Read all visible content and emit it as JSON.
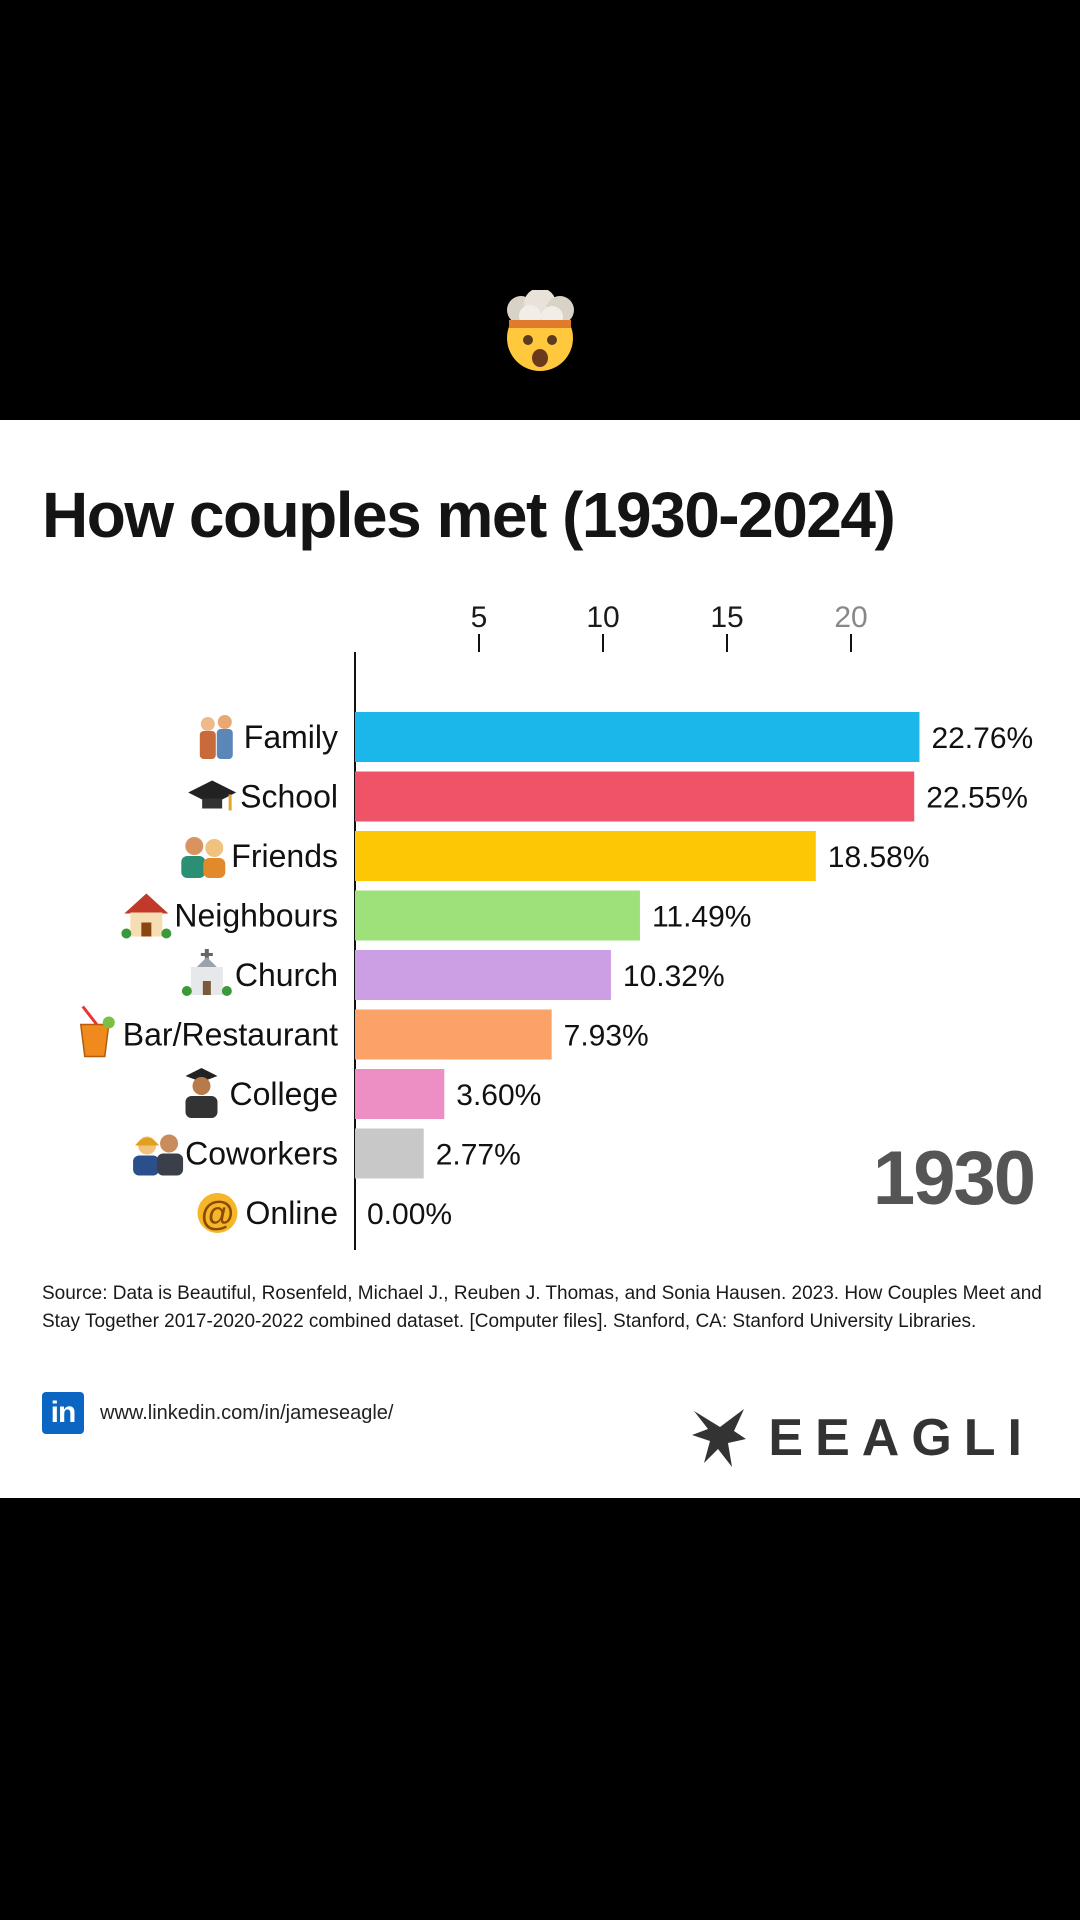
{
  "header_emoji": "exploding-head-icon",
  "chart_data": {
    "type": "bar",
    "orientation": "horizontal",
    "title": "How couples met (1930-2024)",
    "year": "1930",
    "xlim": [
      0,
      23
    ],
    "x_ticks": [
      5,
      10,
      15,
      20
    ],
    "grid": false,
    "categories": [
      "Family",
      "School",
      "Friends",
      "Neighbours",
      "Church",
      "Bar/Restaurant",
      "College",
      "Coworkers",
      "Online"
    ],
    "icons": [
      "family-icon",
      "graduation-cap-icon",
      "friends-icon",
      "house-icon",
      "church-icon",
      "tropical-drink-icon",
      "graduate-icon",
      "coworkers-icon",
      "at-sign-icon"
    ],
    "values": [
      22.76,
      22.55,
      18.58,
      11.49,
      10.32,
      7.93,
      3.6,
      2.77,
      0.0
    ],
    "value_labels": [
      "22.76%",
      "22.55%",
      "18.58%",
      "11.49%",
      "10.32%",
      "7.93%",
      "3.60%",
      "2.77%",
      "0.00%"
    ],
    "colors": [
      "#1bb7ea",
      "#ef5368",
      "#fdc705",
      "#9ee07a",
      "#cc9ee3",
      "#fba268",
      "#ed8fc5",
      "#c8c8c8",
      "#c8c8c8"
    ]
  },
  "footer": {
    "source": "Source: Data is Beautiful, Rosenfeld, Michael J., Reuben J. Thomas, and Sonia Hausen. 2023. How Couples Meet and Stay Together 2017-2020-2022 combined dataset. [Computer files]. Stanford, CA: Stanford University Libraries.",
    "linkedin_icon": "in",
    "linkedin_url": "www.linkedin.com/in/jameseagle/",
    "brand": "EEAGLI"
  }
}
